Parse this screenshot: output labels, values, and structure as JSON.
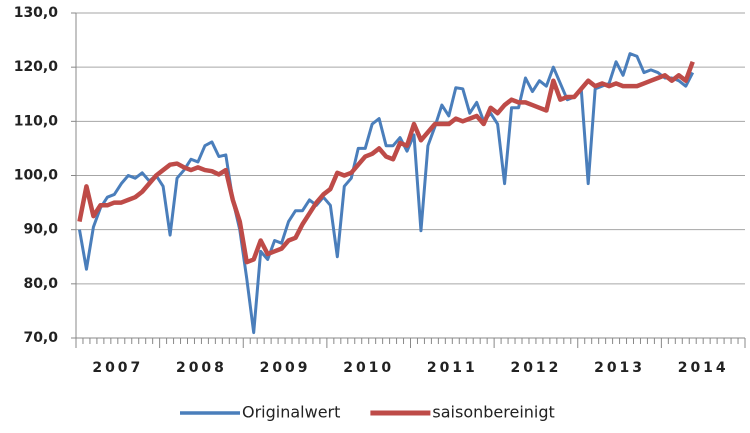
{
  "chart_data": {
    "type": "line",
    "categories": [
      null,
      null,
      null,
      null,
      null,
      null,
      "2007",
      null,
      null,
      null,
      null,
      null,
      null,
      null,
      null,
      null,
      null,
      null,
      "2008",
      null,
      null,
      null,
      null,
      null,
      null,
      null,
      null,
      null,
      null,
      null,
      "2009",
      null,
      null,
      null,
      null,
      null,
      null,
      null,
      null,
      null,
      null,
      null,
      "2010",
      null,
      null,
      null,
      null,
      null,
      null,
      null,
      null,
      null,
      null,
      null,
      "2011",
      null,
      null,
      null,
      null,
      null,
      null,
      null,
      null,
      null,
      null,
      null,
      "2012",
      null,
      null,
      null,
      null,
      null,
      null,
      null,
      null,
      null,
      null,
      null,
      "2013",
      null,
      null,
      null,
      null,
      null,
      null,
      null,
      null,
      null,
      null,
      null,
      "2014",
      null,
      null,
      null,
      null,
      null
    ],
    "series": [
      {
        "name": "Originalwert",
        "color": "#4a7ebb",
        "values": [
          90,
          82.7,
          90.5,
          94,
          96,
          96.5,
          98.5,
          100,
          99.5,
          100.5,
          99,
          100,
          98,
          89,
          99.5,
          101,
          103,
          102.5,
          105.5,
          106.2,
          103.5,
          103.8,
          95.5,
          90,
          81,
          71,
          86,
          84.5,
          88,
          87.5,
          91.5,
          93.5,
          93.5,
          95.5,
          94.5,
          96,
          94.5,
          85,
          98,
          99.5,
          105,
          105,
          109.5,
          110.5,
          105.5,
          105.5,
          107,
          104.5,
          107.5,
          89.8,
          105.5,
          109,
          113,
          111,
          116.2,
          116,
          111.5,
          113.5,
          110,
          111.5,
          109.5,
          98.5,
          112.5,
          112.5,
          118,
          115.5,
          117.5,
          116.5,
          120,
          117,
          114,
          114.5,
          116,
          98.5,
          116,
          116.5,
          117,
          121,
          118.5,
          122.5,
          122,
          119,
          119.5,
          119,
          118,
          118,
          117.5,
          116.5,
          119,
          null,
          null,
          null,
          null,
          null,
          null,
          null
        ]
      },
      {
        "name": "saisonbereinigt",
        "color": "#be4b48",
        "values": [
          91.5,
          98,
          92.5,
          94.5,
          94.5,
          95,
          95,
          95.5,
          96,
          97,
          98.5,
          100,
          101,
          102,
          102.2,
          101.5,
          101,
          101.5,
          101,
          100.8,
          100.2,
          101,
          95.5,
          91.5,
          84,
          84.5,
          88,
          85.5,
          86,
          86.5,
          88,
          88.5,
          91,
          93,
          95,
          96.5,
          97.5,
          100.5,
          100,
          100.5,
          102,
          103.5,
          104,
          105,
          103.5,
          103,
          106,
          105.5,
          109.5,
          106.5,
          108,
          109.5,
          109.5,
          109.5,
          110.5,
          110,
          110.5,
          111,
          109.5,
          112.5,
          111.5,
          113,
          114,
          113.5,
          113.5,
          113,
          112.5,
          112,
          117.5,
          114,
          114.5,
          114.5,
          116,
          117.5,
          116.5,
          117,
          116.5,
          117,
          116.5,
          116.5,
          116.5,
          117,
          117.5,
          118,
          118.5,
          117.5,
          118.5,
          117.5,
          121,
          null,
          null,
          null,
          null,
          null,
          null,
          null
        ]
      }
    ],
    "ylim": [
      70,
      130
    ],
    "yticks": [
      {
        "value": 70,
        "label": "70,0"
      },
      {
        "value": 80,
        "label": "80,0"
      },
      {
        "value": 90,
        "label": "90,0"
      },
      {
        "value": 100,
        "label": "100,0"
      },
      {
        "value": 110,
        "label": "110,0"
      },
      {
        "value": 120,
        "label": "120,0"
      },
      {
        "value": 130,
        "label": "130,0"
      }
    ],
    "grid": true,
    "legend": "bottom"
  }
}
